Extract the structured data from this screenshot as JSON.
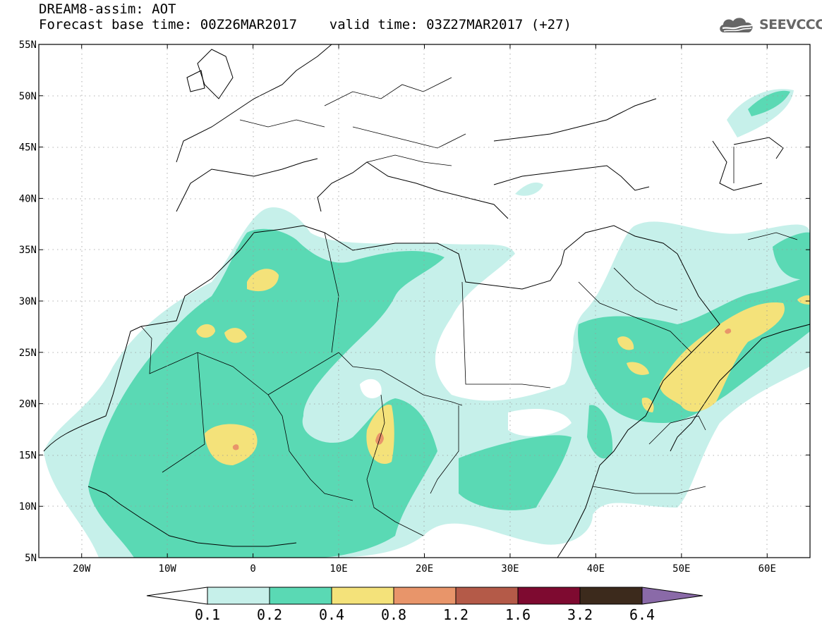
{
  "header": {
    "title_line1": "DREAM8-assim: AOT",
    "title_line2": "Forecast base time: 00Z26MAR2017    valid time: 03Z27MAR2017 (+27)",
    "logo_text": "SEEVCCC"
  },
  "map": {
    "lon_range": [
      -25,
      65
    ],
    "lat_range": [
      5,
      55
    ],
    "lat_ticks": [
      {
        "value": 55,
        "label": "55N"
      },
      {
        "value": 50,
        "label": "50N"
      },
      {
        "value": 45,
        "label": "45N"
      },
      {
        "value": 40,
        "label": "40N"
      },
      {
        "value": 35,
        "label": "35N"
      },
      {
        "value": 30,
        "label": "30N"
      },
      {
        "value": 25,
        "label": "25N"
      },
      {
        "value": 20,
        "label": "20N"
      },
      {
        "value": 15,
        "label": "15N"
      },
      {
        "value": 10,
        "label": "10N"
      },
      {
        "value": 5,
        "label": "5N"
      }
    ],
    "lon_ticks": [
      {
        "value": -20,
        "label": "20W"
      },
      {
        "value": -10,
        "label": "10W"
      },
      {
        "value": 0,
        "label": "0"
      },
      {
        "value": 10,
        "label": "10E"
      },
      {
        "value": 20,
        "label": "20E"
      },
      {
        "value": 30,
        "label": "30E"
      },
      {
        "value": 40,
        "label": "40E"
      },
      {
        "value": 50,
        "label": "50E"
      },
      {
        "value": 60,
        "label": "60E"
      }
    ]
  },
  "colorbar": {
    "labels": [
      "0.1",
      "0.2",
      "0.4",
      "0.8",
      "1.2",
      "1.6",
      "3.2",
      "6.4"
    ],
    "colors": [
      "#ffffff",
      "#c6f0ea",
      "#5ad9b4",
      "#f4e27a",
      "#e8956a",
      "#b45a48",
      "#7e0a30",
      "#3c2a1c",
      "#8a6aa8"
    ]
  },
  "colors": {
    "aot_01_02": "#c6f0ea",
    "aot_02_04": "#5ad9b4",
    "aot_04_08": "#f4e27a",
    "aot_08_12": "#e8956a",
    "logo_gray": "#666666"
  }
}
